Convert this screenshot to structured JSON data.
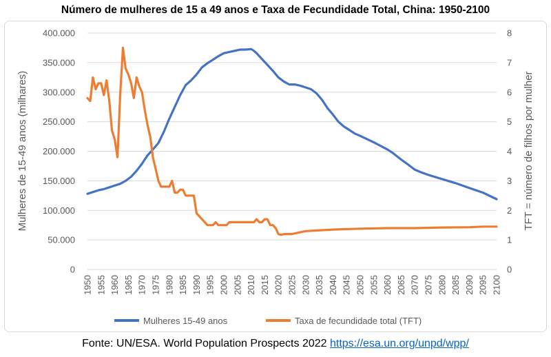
{
  "title": "Número de mulheres de 15 a 49 anos e Taxa de Fecundidade Total, China: 1950-2100",
  "source": {
    "text": "Fonte: UN/ESA. World Population Prospects 2022 ",
    "link": "https://esa.un.org/unpd/wpp/"
  },
  "colors": {
    "women": "#4472c4",
    "tft": "#ed7d31",
    "grid": "#d9d9d9",
    "text": "#595959"
  },
  "chart_data": {
    "type": "line",
    "title": "Número de mulheres de 15 a 49 anos e Taxa de Fecundidade Total, China: 1950-2100",
    "xlabel": "",
    "ylabel": "Mulheres de 15-49 anos (milhares)",
    "y2label": "TFT = número de filhos por mulher",
    "xlim": [
      1950,
      2100
    ],
    "ylim": [
      0,
      400000
    ],
    "y2lim": [
      0,
      8
    ],
    "x_ticks": [
      "1950",
      "1955",
      "1960",
      "1965",
      "1970",
      "1975",
      "1980",
      "1985",
      "1990",
      "1995",
      "2000",
      "2005",
      "2010",
      "2015",
      "2020",
      "2025",
      "2030",
      "2035",
      "2040",
      "2045",
      "2050",
      "2055",
      "2060",
      "2065",
      "2070",
      "2075",
      "2080",
      "2085",
      "2090",
      "2095",
      "2100"
    ],
    "y_ticks": [
      "0",
      "50.000",
      "100.000",
      "150.000",
      "200.000",
      "250.000",
      "300.000",
      "350.000",
      "400.000"
    ],
    "y2_ticks": [
      "0",
      "1",
      "2",
      "3",
      "4",
      "5",
      "6",
      "7",
      "8"
    ],
    "grid": true,
    "legend_position": "bottom",
    "series": [
      {
        "name": "Mulheres 15-49 anos",
        "axis": "left",
        "x": [
          1950,
          1952,
          1954,
          1956,
          1958,
          1960,
          1962,
          1964,
          1966,
          1968,
          1970,
          1972,
          1974,
          1976,
          1978,
          1980,
          1982,
          1984,
          1986,
          1988,
          1990,
          1992,
          1994,
          1996,
          1998,
          2000,
          2002,
          2004,
          2006,
          2008,
          2010,
          2011,
          2012,
          2014,
          2016,
          2018,
          2020,
          2022,
          2024,
          2026,
          2028,
          2030,
          2032,
          2034,
          2036,
          2038,
          2040,
          2042,
          2044,
          2046,
          2048,
          2050,
          2055,
          2060,
          2062,
          2065,
          2068,
          2070,
          2072,
          2075,
          2080,
          2085,
          2090,
          2095,
          2100
        ],
        "values": [
          128000,
          131000,
          134000,
          136000,
          139000,
          142000,
          145000,
          150000,
          157000,
          167000,
          179000,
          193000,
          203000,
          214000,
          233000,
          255000,
          275000,
          295000,
          312000,
          320000,
          330000,
          342000,
          349000,
          355000,
          361000,
          366000,
          368000,
          370000,
          372000,
          372000,
          373000,
          370000,
          366000,
          356000,
          346000,
          336000,
          325000,
          318000,
          313000,
          313000,
          311000,
          308000,
          305000,
          298000,
          287000,
          273000,
          262000,
          250000,
          242000,
          236000,
          230000,
          226000,
          215000,
          203000,
          197000,
          186000,
          176000,
          169000,
          165000,
          160000,
          153000,
          146000,
          138000,
          130000,
          119000
        ]
      },
      {
        "name": "Taxa de fecundidade total (TFT)",
        "axis": "right",
        "x": [
          1950,
          1951,
          1952,
          1953,
          1954,
          1955,
          1956,
          1957,
          1958,
          1959,
          1960,
          1961,
          1962,
          1963,
          1964,
          1965,
          1966,
          1967,
          1968,
          1969,
          1970,
          1971,
          1972,
          1973,
          1974,
          1975,
          1976,
          1977,
          1978,
          1979,
          1980,
          1981,
          1982,
          1983,
          1984,
          1985,
          1986,
          1987,
          1988,
          1989,
          1990,
          1991,
          1992,
          1993,
          1994,
          1995,
          1996,
          1997,
          1998,
          1999,
          2000,
          2001,
          2002,
          2003,
          2004,
          2005,
          2006,
          2007,
          2008,
          2009,
          2010,
          2011,
          2012,
          2013,
          2014,
          2015,
          2016,
          2017,
          2018,
          2019,
          2020,
          2021,
          2022,
          2023,
          2025,
          2030,
          2040,
          2050,
          2060,
          2070,
          2080,
          2090,
          2095,
          2100
        ],
        "values": [
          5.8,
          5.7,
          6.5,
          6.1,
          6.3,
          6.3,
          5.9,
          6.4,
          5.7,
          4.7,
          4.4,
          3.8,
          5.9,
          7.5,
          6.8,
          6.6,
          6.3,
          5.8,
          6.5,
          6.2,
          6.0,
          5.4,
          4.9,
          4.5,
          3.8,
          3.4,
          3.0,
          2.8,
          2.8,
          2.8,
          2.8,
          3.0,
          2.6,
          2.6,
          2.7,
          2.7,
          2.5,
          2.5,
          2.5,
          2.5,
          1.9,
          1.8,
          1.7,
          1.6,
          1.5,
          1.5,
          1.5,
          1.6,
          1.5,
          1.5,
          1.5,
          1.5,
          1.6,
          1.6,
          1.6,
          1.6,
          1.6,
          1.6,
          1.6,
          1.6,
          1.6,
          1.6,
          1.7,
          1.6,
          1.6,
          1.7,
          1.7,
          1.5,
          1.5,
          1.4,
          1.2,
          1.17,
          1.2,
          1.2,
          1.2,
          1.3,
          1.35,
          1.38,
          1.4,
          1.4,
          1.42,
          1.43,
          1.45,
          1.45
        ]
      }
    ]
  }
}
